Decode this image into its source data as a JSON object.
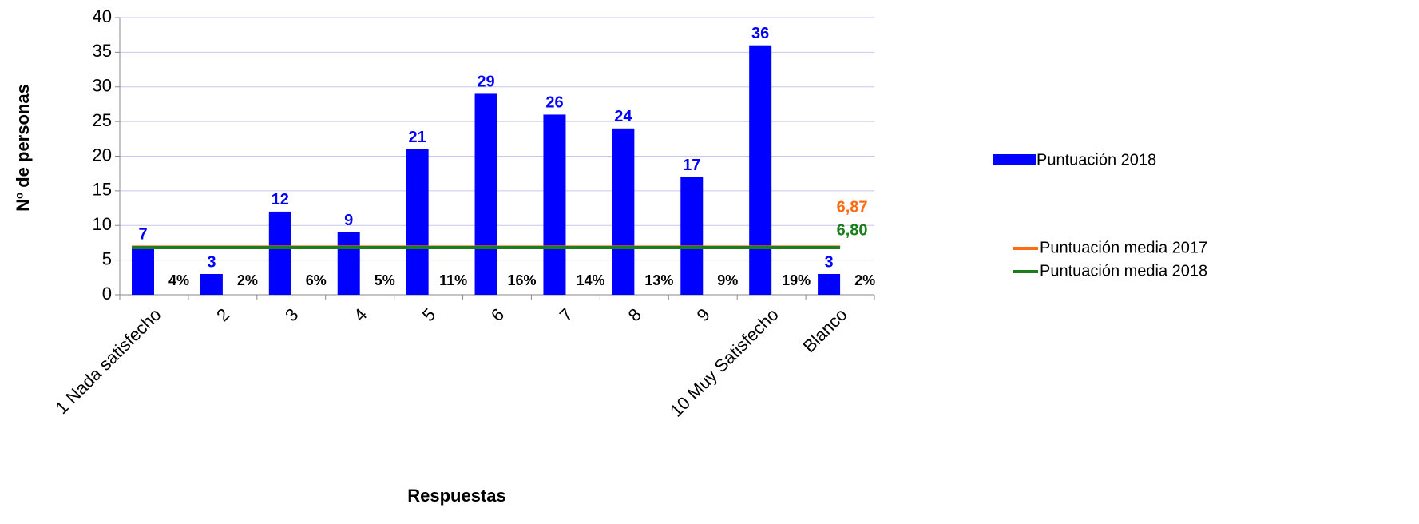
{
  "chart_data": {
    "type": "bar",
    "x_label": "Respuestas",
    "y_label": "Nº de personas",
    "categories": [
      "1 Nada satisfecho",
      "2",
      "3",
      "4",
      "5",
      "6",
      "7",
      "8",
      "9",
      "10 Muy Satisfecho",
      "Blanco"
    ],
    "series": [
      {
        "name": "Puntuación 2018",
        "color": "#0000ff",
        "values": [
          7,
          3,
          12,
          9,
          21,
          29,
          26,
          24,
          17,
          36,
          3
        ]
      }
    ],
    "percentages": {
      "values": [
        4,
        2,
        6,
        5,
        11,
        16,
        14,
        13,
        9,
        19,
        2
      ],
      "value_labels": [
        "4%",
        "2%",
        "6%",
        "5%",
        "11%",
        "16%",
        "14%",
        "13%",
        "9%",
        "19%",
        "2%"
      ]
    },
    "averages": [
      {
        "name": "Puntuación media 2017",
        "color": "#ff6a13",
        "value": 6.87,
        "value_label": "6,87"
      },
      {
        "name": "Puntuación media 2018",
        "color": "#1a7f1a",
        "value": 6.8,
        "value_label": "6,80"
      }
    ],
    "ylim": [
      0,
      40
    ],
    "yticks": [
      0,
      5,
      10,
      15,
      20,
      25,
      30,
      35,
      40
    ],
    "grid": true
  }
}
